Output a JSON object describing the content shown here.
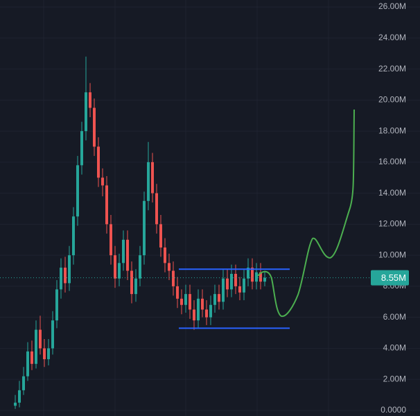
{
  "chart_data": {
    "type": "candlestick",
    "ylim": [
      -0.36,
      26.45
    ],
    "yticks": [
      {
        "value": 0,
        "label": "0.0000"
      },
      {
        "value": 2,
        "label": "2.00M"
      },
      {
        "value": 4,
        "label": "4.00M"
      },
      {
        "value": 6,
        "label": "6.00M"
      },
      {
        "value": 8,
        "label": "8.00M"
      },
      {
        "value": 10,
        "label": "10.00M"
      },
      {
        "value": 12,
        "label": "12.00M"
      },
      {
        "value": 14,
        "label": "14.00M"
      },
      {
        "value": 16,
        "label": "16.00M"
      },
      {
        "value": 18,
        "label": "18.00M"
      },
      {
        "value": 20,
        "label": "20.00M"
      },
      {
        "value": 22,
        "label": "22.00M"
      },
      {
        "value": 24,
        "label": "24.00M"
      },
      {
        "value": 26,
        "label": "26.00M"
      }
    ],
    "grid": true,
    "up_color": "#26a69a",
    "down_color": "#ef5350",
    "level_color": "#2962ff",
    "levels": [
      9.1,
      5.3
    ],
    "last_price": {
      "value": 8.55,
      "label": "8.55M"
    },
    "open": [
      0.3,
      0.5,
      1.3,
      2.2,
      3.8,
      3.0,
      5.2,
      4.0,
      3.3,
      4.0,
      5.8,
      7.8,
      9.2,
      8.2,
      10.0,
      12.5,
      15.8,
      18.0,
      20.5,
      19.5,
      17.0,
      15.0,
      14.5,
      12.0,
      10.0,
      8.5,
      9.5,
      11.0,
      9.0,
      7.5,
      8.5,
      10.0,
      13.5,
      16.0,
      14.0,
      12.0,
      10.5,
      9.5,
      9.0,
      8.0,
      7.2,
      6.8,
      7.5,
      6.5,
      5.8,
      7.2,
      6.5,
      6.0,
      6.8,
      7.5,
      7.0,
      8.5,
      7.8,
      8.8,
      8.0,
      7.6,
      8.5,
      9.2,
      8.3,
      8.9,
      8.3
    ],
    "high": [
      1.0,
      1.9,
      2.8,
      4.4,
      4.5,
      5.8,
      6.1,
      4.6,
      4.6,
      6.4,
      8.4,
      9.8,
      9.9,
      10.6,
      13.1,
      16.4,
      18.6,
      22.8,
      21.1,
      20.1,
      17.6,
      15.6,
      15.1,
      12.6,
      10.6,
      10.1,
      11.6,
      11.6,
      9.6,
      9.1,
      10.6,
      14.1,
      17.3,
      16.6,
      14.6,
      12.6,
      11.1,
      10.1,
      9.6,
      8.6,
      7.8,
      8.1,
      8.1,
      7.1,
      7.8,
      7.8,
      7.1,
      7.4,
      8.1,
      8.1,
      9.1,
      9.1,
      9.4,
      9.4,
      8.6,
      9.1,
      9.8,
      9.8,
      9.5,
      9.5,
      9.0
    ],
    "low": [
      0.1,
      0.2,
      1.0,
      1.9,
      2.6,
      2.7,
      3.6,
      2.8,
      2.9,
      3.6,
      5.3,
      7.2,
      7.6,
      7.7,
      9.4,
      11.9,
      15.2,
      17.4,
      18.9,
      16.4,
      14.4,
      13.8,
      11.4,
      9.4,
      7.9,
      8.0,
      9.0,
      8.4,
      6.9,
      7.0,
      8.0,
      9.4,
      12.9,
      13.4,
      11.4,
      9.9,
      8.9,
      8.4,
      7.4,
      6.6,
      6.2,
      6.3,
      5.9,
      5.2,
      5.3,
      6.0,
      5.5,
      5.5,
      6.3,
      6.5,
      6.5,
      7.3,
      7.3,
      7.5,
      7.1,
      7.1,
      8.0,
      7.8,
      7.8,
      7.8,
      8.0
    ],
    "close": [
      0.5,
      1.3,
      2.2,
      3.8,
      3.0,
      5.2,
      4.0,
      3.3,
      4.0,
      5.8,
      7.8,
      9.2,
      8.2,
      10.0,
      12.5,
      15.8,
      18.0,
      20.5,
      19.5,
      17.0,
      15.0,
      14.5,
      12.0,
      10.0,
      8.5,
      9.5,
      11.0,
      9.0,
      7.5,
      8.5,
      10.0,
      13.5,
      16.0,
      14.0,
      12.0,
      10.5,
      9.5,
      9.0,
      8.0,
      7.2,
      6.8,
      7.5,
      6.5,
      5.8,
      7.2,
      6.5,
      6.0,
      6.8,
      7.5,
      7.0,
      8.5,
      7.8,
      8.8,
      8.0,
      7.6,
      8.5,
      9.2,
      8.3,
      8.9,
      8.3,
      8.55
    ]
  }
}
